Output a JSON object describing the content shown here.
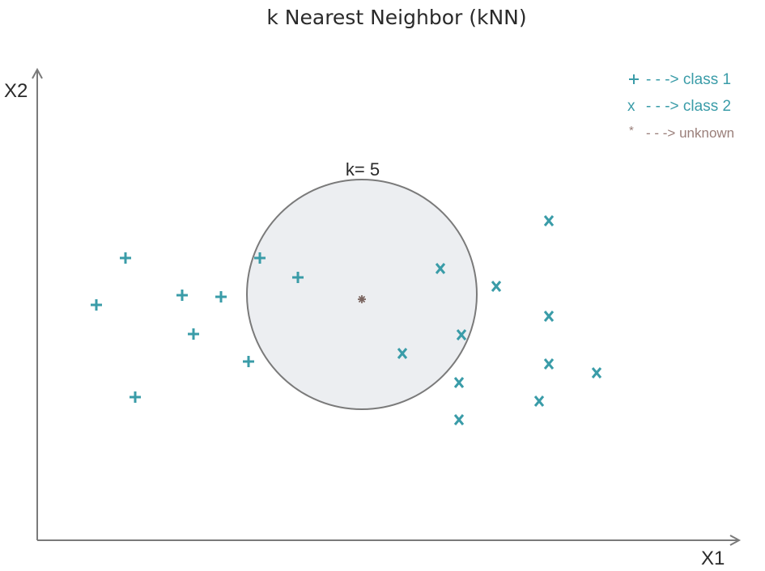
{
  "title": "k Nearest Neighbor (kNN)",
  "axes": {
    "x_label": "X1",
    "y_label": "X2"
  },
  "neighborhood": {
    "k_label": "k= 5",
    "fill_color": "#eceef1",
    "stroke_color": "#7a7a7a"
  },
  "legend": {
    "items": [
      {
        "symbol": "+",
        "text": "- - -> class 1",
        "color": "#3a9ca8"
      },
      {
        "symbol": "x",
        "text": "- - -> class 2",
        "color": "#3a9ca8"
      },
      {
        "symbol": "*",
        "text": "- - -> unknown",
        "color": "#9a7f7a"
      }
    ]
  },
  "colors": {
    "class1": "#3a9ca8",
    "class2": "#3a9ca8",
    "unknown": "#7a6560",
    "axis": "#7a7a7a"
  },
  "chart_data": {
    "type": "scatter",
    "title": "k Nearest Neighbor (kNN)",
    "xlabel": "X1",
    "ylabel": "X2",
    "k": 5,
    "series": [
      {
        "name": "class 1",
        "symbol": "+",
        "points": [
          [
            155,
            319
          ],
          [
            119,
            377
          ],
          [
            225,
            365
          ],
          [
            273,
            367
          ],
          [
            239,
            413
          ],
          [
            307,
            447
          ],
          [
            167,
            491
          ],
          [
            321,
            319
          ],
          [
            368,
            343
          ]
        ]
      },
      {
        "name": "class 2",
        "symbol": "x",
        "points": [
          [
            544,
            332
          ],
          [
            613,
            354
          ],
          [
            570,
            414
          ],
          [
            497,
            437
          ],
          [
            567,
            473
          ],
          [
            567,
            519
          ],
          [
            678,
            273
          ],
          [
            678,
            391
          ],
          [
            678,
            450
          ],
          [
            737,
            461
          ],
          [
            666,
            496
          ]
        ]
      },
      {
        "name": "unknown",
        "symbol": "*",
        "points": [
          [
            447,
            370
          ]
        ]
      }
    ]
  }
}
